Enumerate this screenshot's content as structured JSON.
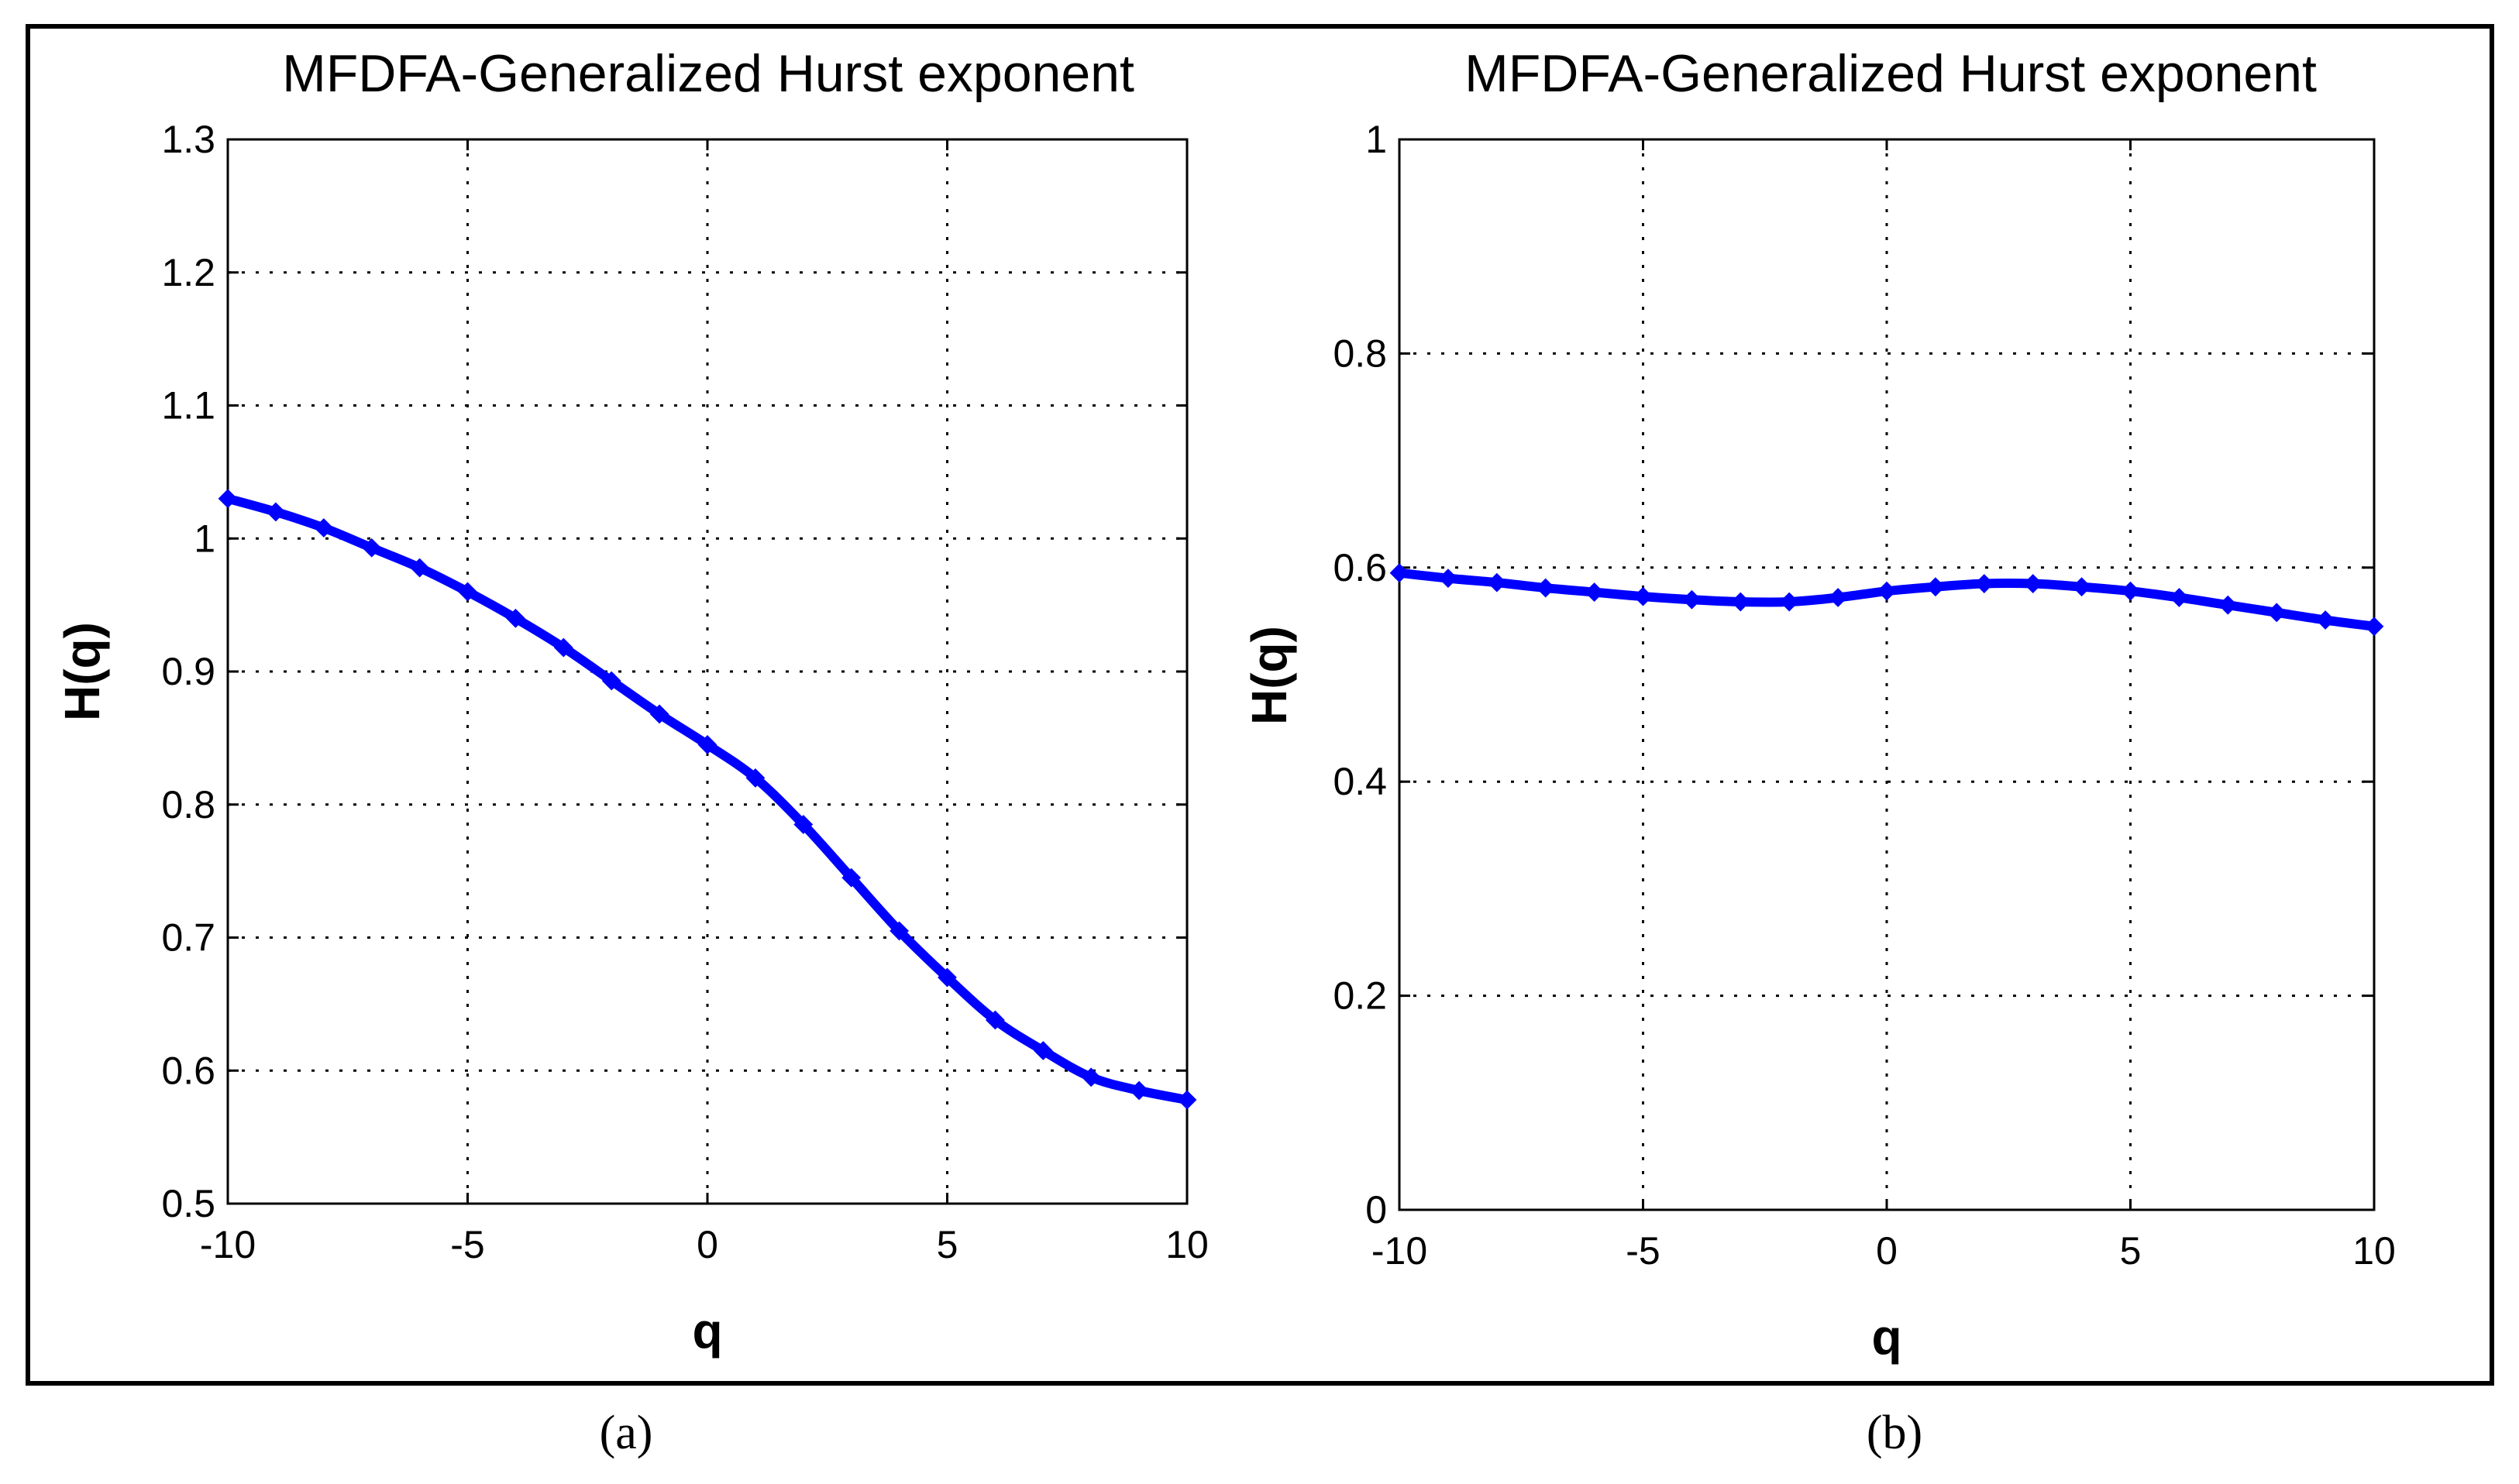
{
  "colors": {
    "series": "#0000ff",
    "frame": "#000000",
    "background": "#ffffff"
  },
  "chart_data": [
    {
      "type": "line",
      "panel_label": "(a)",
      "title": "MFDFA-Generalized Hurst exponent",
      "xlabel": "q",
      "ylabel": "H(q)",
      "xlim": [
        -10,
        10
      ],
      "ylim": [
        0.5,
        1.3
      ],
      "xticks": [
        "-10",
        "-5",
        "0",
        "5",
        "10"
      ],
      "yticks": [
        "0.5",
        "0.6",
        "0.7",
        "0.8",
        "0.9",
        "1",
        "1.1",
        "1.2",
        "1.3"
      ],
      "grid": true,
      "marker": "diamond",
      "x": [
        -10,
        -9,
        -8,
        -7,
        -6,
        -5,
        -4,
        -3,
        -2,
        -1,
        0,
        1,
        2,
        3,
        4,
        5,
        6,
        7,
        8,
        9,
        10
      ],
      "y": [
        1.03,
        1.02,
        1.008,
        0.993,
        0.978,
        0.96,
        0.94,
        0.918,
        0.893,
        0.868,
        0.845,
        0.82,
        0.785,
        0.745,
        0.705,
        0.67,
        0.638,
        0.615,
        0.595,
        0.585,
        0.578
      ]
    },
    {
      "type": "line",
      "panel_label": "(b)",
      "title": "MFDFA-Generalized Hurst exponent",
      "xlabel": "q",
      "ylabel": "H(q)",
      "xlim": [
        -10,
        10
      ],
      "ylim": [
        0,
        1
      ],
      "xticks": [
        "-10",
        "-5",
        "0",
        "5",
        "10"
      ],
      "yticks": [
        "0",
        "0.2",
        "0.4",
        "0.6",
        "0.8",
        "1"
      ],
      "grid": true,
      "marker": "diamond",
      "x": [
        -10,
        -9,
        -8,
        -7,
        -6,
        -5,
        -4,
        -3,
        -2,
        -1,
        0,
        1,
        2,
        3,
        4,
        5,
        6,
        7,
        8,
        9,
        10
      ],
      "y": [
        0.595,
        0.59,
        0.586,
        0.581,
        0.577,
        0.573,
        0.57,
        0.568,
        0.568,
        0.572,
        0.578,
        0.582,
        0.585,
        0.585,
        0.582,
        0.578,
        0.572,
        0.565,
        0.558,
        0.551,
        0.545
      ]
    }
  ]
}
